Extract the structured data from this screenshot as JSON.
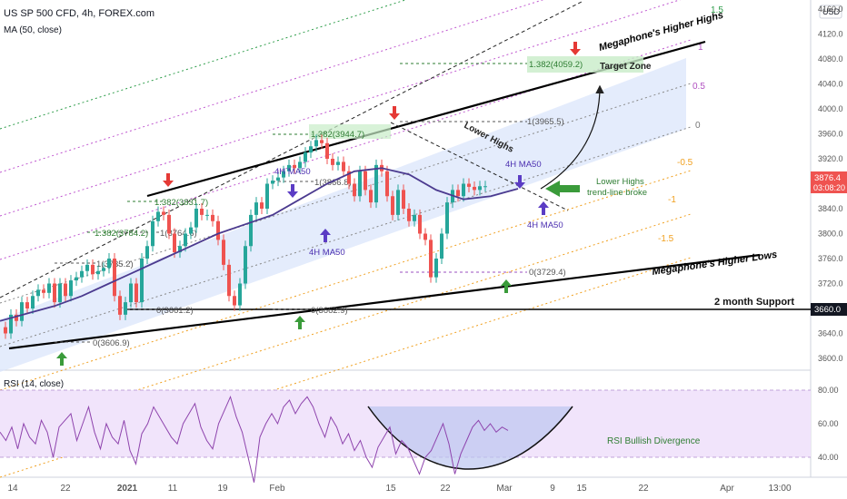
{
  "header": {
    "symbol": "US SP 500 CFD, 4h, FOREX.com",
    "indicator": "MA (50, close)",
    "currency": "USD",
    "rsi_label": "RSI (14, close)"
  },
  "price_badge": {
    "value": "3876.4",
    "countdown": "03:08:20",
    "color": "#ef5350"
  },
  "support_badge": {
    "value": "3660.0"
  },
  "colors": {
    "price_line": "#1e7e5e",
    "ma": "#4b3a8f",
    "channel_fill": "#dbe5fb",
    "trend": "#000000",
    "rsi_line": "#8e44ad",
    "rsi_band": "#f1e4fb",
    "arrow_up": "#3a9b3a",
    "arrow_down": "#e53935",
    "ma_arrow": "#5b3cc4",
    "fib_green": "#2e7d32"
  },
  "chart_data": [
    {
      "type": "line",
      "price_axis": {
        "ticks": [
          "4160.0",
          "4120.0",
          "4080.0",
          "4040.0",
          "4000.0",
          "3960.0",
          "3920.0",
          "3880.0",
          "3840.0",
          "3800.0",
          "3760.0",
          "3720.0",
          "3680.0",
          "3640.0",
          "3600.0"
        ],
        "ylim": [
          3570,
          4170
        ]
      },
      "time_axis": {
        "ticks": [
          "14",
          "22",
          "2021",
          "11",
          "19",
          "Feb",
          "15",
          "22",
          "Mar",
          "9",
          "15",
          "22",
          "Apr",
          "13:00"
        ]
      },
      "series": [
        {
          "x": [
            0,
            6,
            12,
            18,
            24,
            30,
            36,
            42,
            48,
            54,
            60,
            66,
            72,
            78,
            84,
            90,
            96,
            102,
            108,
            114,
            120,
            126,
            132,
            138,
            144,
            150,
            156,
            162,
            168,
            174,
            180,
            186,
            192,
            198,
            204,
            210,
            216,
            222,
            228,
            234,
            240,
            246,
            252,
            258,
            264,
            270,
            276,
            282,
            288,
            294,
            300,
            306,
            312,
            318,
            324,
            330,
            336,
            342,
            348,
            354,
            360,
            366,
            372,
            378,
            384,
            390,
            396,
            402,
            408,
            414,
            420,
            426,
            432,
            438,
            444,
            450,
            456,
            462,
            468,
            474,
            480,
            486,
            492,
            498,
            504,
            510,
            516,
            522,
            528,
            534,
            540,
            546,
            552,
            558,
            564,
            570,
            576,
            582,
            588,
            594
          ],
          "values": [
            3650,
            3640,
            3670,
            3660,
            3690,
            3680,
            3700,
            3710,
            3705,
            3720,
            3690,
            3720,
            3700,
            3725,
            3730,
            3740,
            3750,
            3735,
            3740,
            3745,
            3760,
            3700,
            3670,
            3690,
            3720,
            3690,
            3760,
            3780,
            3820,
            3835,
            3830,
            3800,
            3770,
            3780,
            3800,
            3810,
            3840,
            3830,
            3830,
            3820,
            3790,
            3750,
            3700,
            3685,
            3720,
            3780,
            3830,
            3850,
            3840,
            3880,
            3885,
            3890,
            3900,
            3910,
            3905,
            3915,
            3930,
            3940,
            3950,
            3945,
            3920,
            3910,
            3915,
            3900,
            3880,
            3860,
            3900,
            3870,
            3850,
            3910,
            3900,
            3860,
            3830,
            3870,
            3840,
            3820,
            3830,
            3800,
            3790,
            3730,
            3760,
            3800,
            3850,
            3870,
            3860,
            3880,
            3875,
            3870,
            3876,
            3876,
            null,
            null,
            null,
            null,
            null,
            null,
            null,
            null,
            null,
            null
          ]
        },
        {
          "name": "MA (50, close)",
          "x": [
            0,
            30,
            60,
            90,
            120,
            150,
            180,
            210,
            240,
            270,
            300,
            330,
            360,
            390,
            420,
            450,
            480,
            510,
            540,
            570
          ],
          "values": [
            3660,
            3672,
            3684,
            3700,
            3720,
            3740,
            3760,
            3780,
            3800,
            3815,
            3830,
            3855,
            3880,
            3900,
            3905,
            3895,
            3870,
            3855,
            3860,
            3872
          ]
        }
      ],
      "annotations": {
        "megaphone_high": "Megaphone's Higher Highs",
        "megaphone_low": "Megaphone's Higher Lows",
        "target_zone": "Target Zone",
        "lower_highs": "Lower Highs",
        "lower_highs_break_1": "Lower Highs",
        "lower_highs_break_2": "trend-line broke",
        "support": "2 month Support",
        "ma_1": "4H MA50",
        "ma_2": "4H MA50",
        "ma_3": "4H MA50",
        "ma_4": "4H MA50",
        "rsi_div": "RSI Bullish Divergence"
      },
      "fib_labels": [
        {
          "text": "1.382(4059.2)",
          "color": "#2e7d32"
        },
        {
          "text": "1.382(3944.7)",
          "color": "#2e7d32"
        },
        {
          "text": "1.382(3831.7)",
          "color": "#2e7d32"
        },
        {
          "text": "1.382(3784.2)",
          "color": "#2e7d32"
        },
        {
          "text": "1(3965.5)",
          "color": "#555555"
        },
        {
          "text": "1(3866.8)",
          "color": "#555555"
        },
        {
          "text": "1(3764.6)",
          "color": "#555555"
        },
        {
          "text": "1(3735.2)",
          "color": "#555555"
        },
        {
          "text": "0(3729.4)",
          "color": "#555555"
        },
        {
          "text": "0(3661.2)",
          "color": "#555555"
        },
        {
          "text": "0(3662.9)",
          "color": "#555555"
        },
        {
          "text": "0(3606.9)",
          "color": "#555555"
        }
      ],
      "channel_levels": [
        "1.5",
        "1",
        "0.5",
        "0",
        "-0.5",
        "-1",
        "-1.5"
      ]
    },
    {
      "type": "line",
      "rsi_axis": {
        "ticks": [
          "80.00",
          "60.00",
          "40.00"
        ],
        "ylim": [
          20,
          85
        ]
      },
      "series": [
        {
          "name": "RSI (14, close)",
          "values": [
            55,
            50,
            58,
            45,
            60,
            52,
            48,
            62,
            55,
            40,
            58,
            62,
            66,
            50,
            60,
            70,
            55,
            45,
            60,
            52,
            48,
            62,
            44,
            36,
            54,
            60,
            70,
            64,
            58,
            52,
            48,
            60,
            66,
            72,
            58,
            50,
            45,
            60,
            68,
            76,
            64,
            55,
            40,
            25,
            52,
            60,
            66,
            60,
            70,
            74,
            66,
            72,
            76,
            70,
            60,
            52,
            64,
            58,
            48,
            54,
            44,
            50,
            40,
            34,
            46,
            52,
            58,
            42,
            50,
            46,
            38,
            30,
            40,
            44,
            52,
            60,
            48,
            30,
            42,
            50,
            58,
            62,
            56,
            60,
            55,
            58,
            56,
            null,
            null,
            null
          ]
        }
      ]
    }
  ]
}
